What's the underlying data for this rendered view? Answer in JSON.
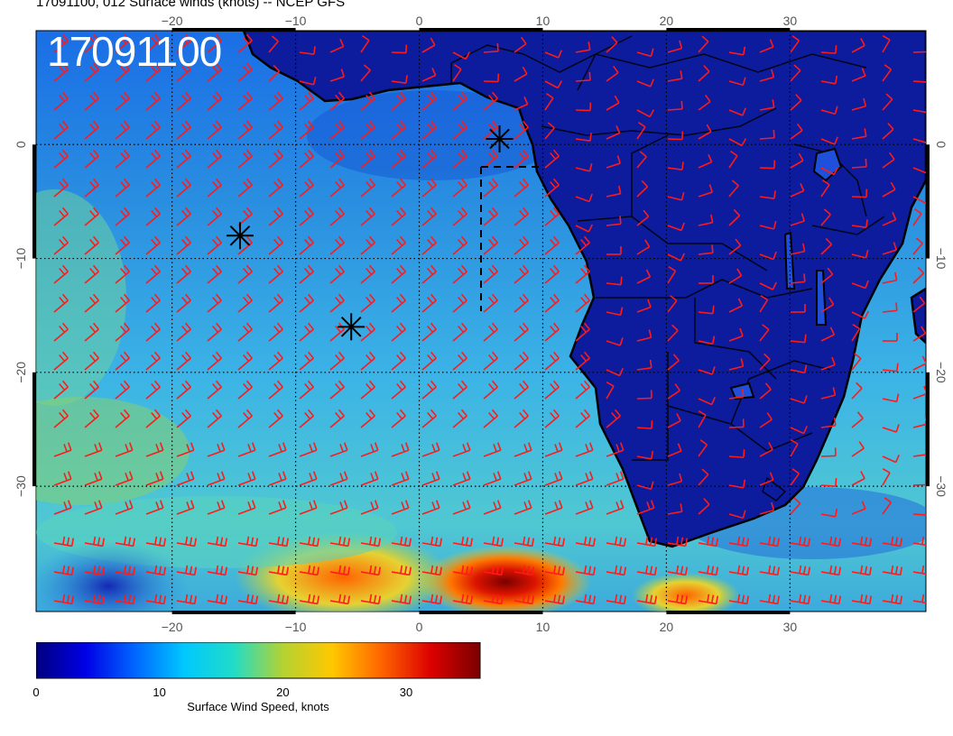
{
  "title": "17091100, 012 Surface winds (knots) -- NCEP GFS",
  "datestamp": "17091100",
  "map": {
    "lon_range": [
      -31,
      41
    ],
    "lat_range": [
      -41,
      10
    ],
    "lon_ticks": [
      -20,
      -10,
      0,
      10,
      20,
      30
    ],
    "lat_ticks": [
      0,
      -10,
      -20,
      -30
    ],
    "lon_tick_labels": [
      "−20",
      "−10",
      "0",
      "10",
      "20",
      "30"
    ],
    "lat_tick_labels": [
      "0",
      "−10",
      "−20",
      "−30"
    ],
    "gridlines": "dotted",
    "ocean_color": "#2a8fe0",
    "land_color": "#0c1c9c",
    "barb_color": "#ff1a1a",
    "markers": [
      {
        "symbol": "asterisk",
        "lon": 6.5,
        "lat": 0.5
      },
      {
        "symbol": "asterisk",
        "lon": -14.5,
        "lat": -8
      },
      {
        "symbol": "asterisk",
        "lon": -5.5,
        "lat": -16
      }
    ]
  },
  "colorbar": {
    "label": "Surface Wind Speed, knots",
    "ticks": [
      "0",
      "10",
      "20",
      "30"
    ],
    "tick_values": [
      0,
      10,
      20,
      30
    ],
    "range": [
      0,
      36
    ],
    "colors": [
      "#00007f",
      "#0000e6",
      "#0066ff",
      "#00c8ff",
      "#20dcc8",
      "#b4d232",
      "#ffc800",
      "#ff6400",
      "#dc0000",
      "#7a0000"
    ]
  }
}
